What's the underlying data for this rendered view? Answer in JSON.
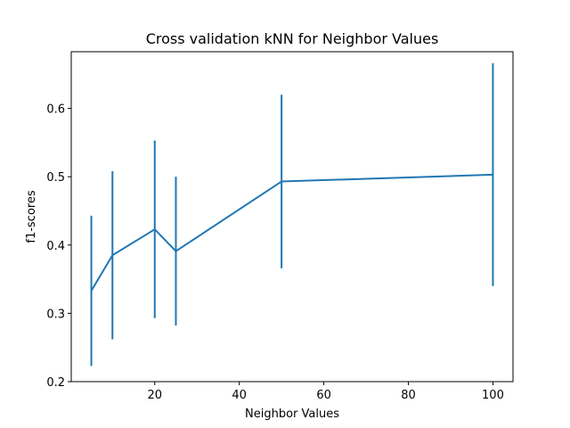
{
  "chart_data": {
    "type": "line",
    "title": "Cross validation kNN for Neighbor Values",
    "xlabel": "Neighbor Values",
    "ylabel": "f1-scores",
    "xlim": [
      0.25,
      104.75
    ],
    "ylim": [
      0.2,
      0.683
    ],
    "xticks": [
      20,
      40,
      60,
      80,
      100
    ],
    "xtick_labels": [
      "20",
      "40",
      "60",
      "80",
      "100"
    ],
    "yticks": [
      0.2,
      0.3,
      0.4,
      0.5,
      0.6
    ],
    "ytick_labels": [
      "0.2",
      "0.3",
      "0.4",
      "0.5",
      "0.6"
    ],
    "grid": false,
    "color": "#1f77b4",
    "series": [
      {
        "x": [
          5,
          10,
          20,
          25,
          50,
          100
        ],
        "y": [
          0.333,
          0.385,
          0.423,
          0.391,
          0.493,
          0.503
        ],
        "error": [
          0.11,
          0.123,
          0.13,
          0.109,
          0.127,
          0.163
        ]
      }
    ]
  }
}
